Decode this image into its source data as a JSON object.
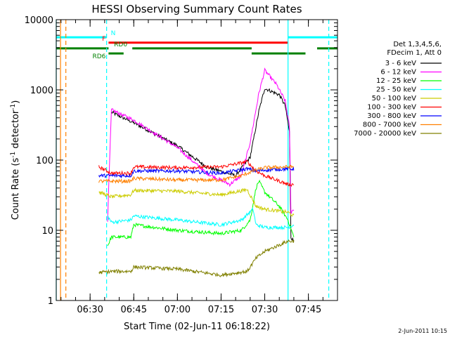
{
  "chart_data": {
    "type": "line",
    "title": "HESSI Observing Summary Count Rates",
    "xlabel": "Start Time (02-Jun-11 06:18:22)",
    "ylabel_main": "Count Rate (s",
    "ylabel_sup1": "-1",
    "ylabel_mid": " detector",
    "ylabel_sup2": "-1",
    "ylabel_end": ")",
    "xscale": "time",
    "yscale": "log",
    "xlim": [
      "06:18:22",
      "07:55:00"
    ],
    "ylim": [
      1,
      10000
    ],
    "xticks": [
      {
        "t": "06:30",
        "label": "06:30"
      },
      {
        "t": "06:45",
        "label": "06:45"
      },
      {
        "t": "07:00",
        "label": "07:00"
      },
      {
        "t": "07:15",
        "label": "07:15"
      },
      {
        "t": "07:30",
        "label": "07:30"
      },
      {
        "t": "07:45",
        "label": "07:45"
      }
    ],
    "yticks": [
      {
        "v": 1,
        "label": "1"
      },
      {
        "v": 10,
        "label": "10"
      },
      {
        "v": 100,
        "label": "100"
      },
      {
        "v": 1000,
        "label": "1000"
      },
      {
        "v": 10000,
        "label": "10000"
      }
    ],
    "legend_header": [
      "Det 1,3,4,5,6,",
      "FDecim 1, Att 0"
    ],
    "legend_position": "right",
    "series": [
      {
        "name": "3 - 6 keV",
        "color": "#000000",
        "points": [
          [
            "06:36:30",
            null
          ],
          [
            "06:37:20",
            480
          ],
          [
            "06:45",
            340
          ],
          [
            "07:00",
            160
          ],
          [
            "07:10",
            80
          ],
          [
            "07:20",
            60
          ],
          [
            "07:25",
            110
          ],
          [
            "07:28",
            500
          ],
          [
            "07:30",
            1050
          ],
          [
            "07:35",
            850
          ],
          [
            "07:37",
            600
          ],
          [
            "07:38:30",
            250
          ],
          [
            "07:39",
            8
          ],
          [
            "07:40",
            7
          ]
        ]
      },
      {
        "name": "6 - 12 keV",
        "color": "#ff00ff",
        "points": [
          [
            "06:36",
            14
          ],
          [
            "06:37:20",
            520
          ],
          [
            "06:45",
            370
          ],
          [
            "07:00",
            150
          ],
          [
            "07:10",
            65
          ],
          [
            "07:18",
            45
          ],
          [
            "07:22",
            60
          ],
          [
            "07:25",
            180
          ],
          [
            "07:28",
            900
          ],
          [
            "07:30",
            1900
          ],
          [
            "07:34",
            1200
          ],
          [
            "07:37",
            700
          ],
          [
            "07:38:30",
            300
          ],
          [
            "07:39",
            18
          ],
          [
            "07:40",
            20
          ]
        ]
      },
      {
        "name": "12 - 25 keV",
        "color": "#00ff00",
        "points": [
          [
            "06:36",
            6
          ],
          [
            "06:37:20",
            8
          ],
          [
            "06:44",
            8
          ],
          [
            "06:45",
            12
          ],
          [
            "07:00",
            10
          ],
          [
            "07:15",
            9
          ],
          [
            "07:22",
            10
          ],
          [
            "07:25",
            14
          ],
          [
            "07:27",
            40
          ],
          [
            "07:28",
            50
          ],
          [
            "07:30",
            35
          ],
          [
            "07:35",
            22
          ],
          [
            "07:38",
            14
          ],
          [
            "07:40",
            8
          ]
        ]
      },
      {
        "name": "25 - 50 keV",
        "color": "#00ffff",
        "points": [
          [
            "06:36",
            16
          ],
          [
            "06:37:20",
            13
          ],
          [
            "06:44",
            14
          ],
          [
            "06:45",
            16
          ],
          [
            "07:00",
            14
          ],
          [
            "07:15",
            12
          ],
          [
            "07:22",
            14
          ],
          [
            "07:26",
            20
          ],
          [
            "07:27",
            12
          ],
          [
            "07:30",
            11
          ],
          [
            "07:38",
            11
          ],
          [
            "07:40",
            12
          ]
        ]
      },
      {
        "name": "50 - 100 keV",
        "color": "#cccc00",
        "points": [
          [
            "06:33",
            35
          ],
          [
            "06:37:20",
            30
          ],
          [
            "06:44",
            32
          ],
          [
            "06:45",
            37
          ],
          [
            "07:00",
            36
          ],
          [
            "07:15",
            32
          ],
          [
            "07:24",
            38
          ],
          [
            "07:27",
            22
          ],
          [
            "07:30",
            20
          ],
          [
            "07:38",
            18
          ],
          [
            "07:40",
            16
          ]
        ]
      },
      {
        "name": "100 - 300 keV",
        "color": "#ff0000",
        "points": [
          [
            "06:33",
            80
          ],
          [
            "06:37:20",
            65
          ],
          [
            "06:44",
            65
          ],
          [
            "06:45",
            80
          ],
          [
            "07:00",
            78
          ],
          [
            "07:15",
            80
          ],
          [
            "07:24",
            95
          ],
          [
            "07:27",
            70
          ],
          [
            "07:30",
            60
          ],
          [
            "07:38",
            45
          ],
          [
            "07:40",
            45
          ]
        ]
      },
      {
        "name": "300 - 800 keV",
        "color": "#0000ff",
        "points": [
          [
            "06:33",
            60
          ],
          [
            "06:37:20",
            60
          ],
          [
            "06:44",
            60
          ],
          [
            "06:45",
            70
          ],
          [
            "07:00",
            70
          ],
          [
            "07:15",
            65
          ],
          [
            "07:24",
            75
          ],
          [
            "07:27",
            70
          ],
          [
            "07:30",
            72
          ],
          [
            "07:38",
            75
          ],
          [
            "07:40",
            75
          ]
        ]
      },
      {
        "name": "800 - 7000 keV",
        "color": "#ff8000",
        "points": [
          [
            "06:33",
            50
          ],
          [
            "06:37:20",
            50
          ],
          [
            "06:44",
            50
          ],
          [
            "06:45",
            55
          ],
          [
            "07:00",
            52
          ],
          [
            "07:15",
            52
          ],
          [
            "07:22",
            60
          ],
          [
            "07:26",
            70
          ],
          [
            "07:30",
            78
          ],
          [
            "07:38",
            80
          ],
          [
            "07:40",
            80
          ]
        ]
      },
      {
        "name": "7000 - 20000 keV",
        "color": "#808000",
        "points": [
          [
            "06:33",
            2.5
          ],
          [
            "06:37:20",
            2.6
          ],
          [
            "06:44",
            2.6
          ],
          [
            "06:45",
            3
          ],
          [
            "07:00",
            2.8
          ],
          [
            "07:15",
            2.3
          ],
          [
            "07:24",
            2.6
          ],
          [
            "07:27",
            4
          ],
          [
            "07:30",
            5
          ],
          [
            "07:38",
            7
          ],
          [
            "07:40",
            7
          ]
        ]
      }
    ],
    "flag_bars": [
      {
        "label": "N",
        "color": "#00ffff",
        "segments": [
          [
            "06:18:22",
            "06:35:40"
          ],
          [
            "07:38:00",
            "07:55:00"
          ]
        ],
        "level": 5600
      },
      {
        "label": "F",
        "color": "#ff0000",
        "segments": [
          [
            "06:36:20",
            "07:38:00"
          ]
        ],
        "level": 4700
      },
      {
        "label": "RD0",
        "color": "#008000",
        "segments": [
          [
            "06:18:22",
            "06:36:20"
          ],
          [
            "06:44:30",
            "07:25:30"
          ],
          [
            "07:48:00",
            "07:55:00"
          ]
        ],
        "level": 3900
      },
      {
        "label": "RD6",
        "color": "#008000",
        "segments": [
          [
            "06:36:20",
            "06:41:30"
          ],
          [
            "07:25:30",
            "07:44:00"
          ]
        ],
        "level": 3300
      }
    ],
    "vertical_lines": [
      {
        "t": "06:18:22",
        "color": "#00ffff",
        "style": "solid"
      },
      {
        "t": "06:19:50",
        "color": "#ff8000",
        "style": "solid"
      },
      {
        "t": "06:21:40",
        "color": "#ff8000",
        "style": "dashed"
      },
      {
        "t": "06:35:40",
        "color": "#00ffff",
        "style": "dashed"
      },
      {
        "t": "07:38:00",
        "color": "#00ffff",
        "style": "solid"
      },
      {
        "t": "07:52:00",
        "color": "#00ffff",
        "style": "dashed"
      }
    ],
    "grid": false,
    "timestamp": "2-Jun-2011 10:15"
  }
}
